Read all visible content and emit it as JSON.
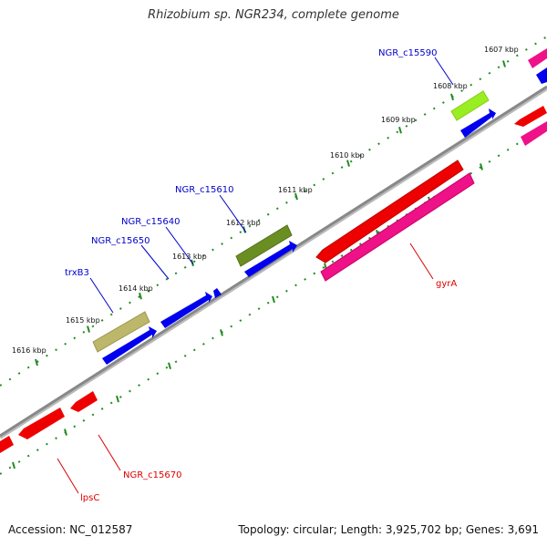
{
  "title": "Rhizobium sp. NGR234, complete genome",
  "ticks": [
    {
      "label": "1607 kbp"
    },
    {
      "label": "1608 kbp"
    },
    {
      "label": "1609 kbp"
    },
    {
      "label": "1610 kbp"
    },
    {
      "label": "1611 kbp"
    },
    {
      "label": "1612 kbp"
    },
    {
      "label": "1613 kbp"
    },
    {
      "label": "1614 kbp"
    },
    {
      "label": "1615 kbp"
    },
    {
      "label": "1616 kbp"
    }
  ],
  "gene_labels": [
    {
      "name": "NGR_c15590",
      "strand": "forward",
      "color": "#0000cc"
    },
    {
      "name": "NGR_c15610",
      "strand": "forward",
      "color": "#0000cc"
    },
    {
      "name": "NGR_c15640",
      "strand": "forward",
      "color": "#0000cc"
    },
    {
      "name": "NGR_c15650",
      "strand": "forward",
      "color": "#0000cc"
    },
    {
      "name": "trxB3",
      "strand": "forward",
      "color": "#0000cc"
    },
    {
      "name": "gyrA",
      "strand": "reverse",
      "color": "#dd0000"
    },
    {
      "name": "NGR_c15670",
      "strand": "reverse",
      "color": "#dd0000"
    },
    {
      "name": "lpsC",
      "strand": "reverse",
      "color": "#dd0000"
    }
  ],
  "colors": {
    "forward_cds": "#0000ee",
    "reverse_cds": "#ee0000",
    "forward_gene_olive": "#6b8e23",
    "forward_gene_khaki": "#bdb76b",
    "forward_gene_lime": "#99ee22",
    "reverse_gene_pink": "#ee1188",
    "backbone": "#888888",
    "tick": "#228b22"
  },
  "footer": {
    "accession": "Accession: NC_012587",
    "summary": "Topology: circular; Length: 3,925,702 bp; Genes: 3,691"
  }
}
